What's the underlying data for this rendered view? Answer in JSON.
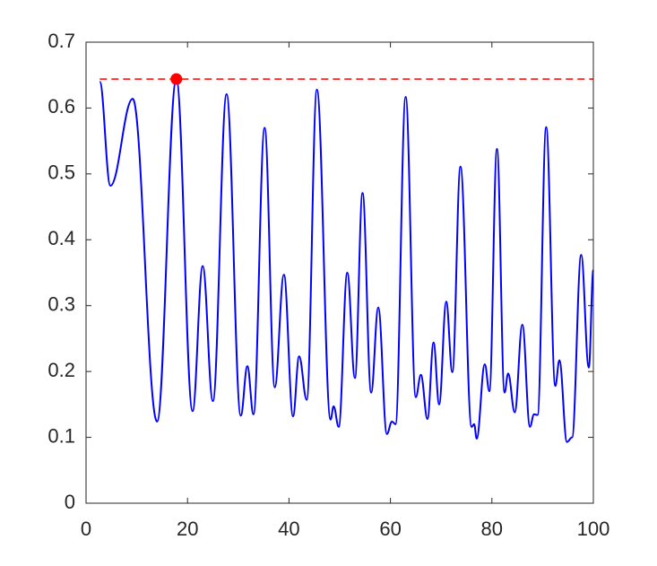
{
  "chart_data": {
    "type": "line",
    "x": [
      2.7,
      4.8,
      9.2,
      14,
      17.8,
      21,
      23,
      25,
      27.7,
      30.5,
      31.8,
      33,
      35.2,
      37.2,
      39,
      40.8,
      42,
      43.5,
      45.5,
      48.2,
      48.8,
      49.8,
      51.5,
      53,
      54.5,
      56.2,
      57.6,
      59.3,
      60.3,
      61,
      63,
      65,
      66,
      67.3,
      68.5,
      69.6,
      71,
      72.2,
      73.8,
      76,
      76.5,
      77,
      78.6,
      79.5,
      81,
      82.5,
      83.2,
      84.5,
      86,
      87.5,
      88.3,
      89,
      90.7,
      92.5,
      93.3,
      94.8,
      95.8,
      97.6,
      99.1,
      100
    ],
    "series": [
      {
        "color": "#0000ff",
        "values": [
          0.64,
          0.482,
          0.614,
          0.124,
          0.644,
          0.14,
          0.36,
          0.155,
          0.621,
          0.133,
          0.208,
          0.135,
          0.57,
          0.176,
          0.347,
          0.132,
          0.223,
          0.157,
          0.628,
          0.127,
          0.147,
          0.116,
          0.35,
          0.19,
          0.471,
          0.168,
          0.297,
          0.105,
          0.124,
          0.12,
          0.617,
          0.161,
          0.195,
          0.128,
          0.244,
          0.15,
          0.306,
          0.199,
          0.511,
          0.116,
          0.12,
          0.098,
          0.211,
          0.17,
          0.538,
          0.168,
          0.197,
          0.138,
          0.271,
          0.116,
          0.135,
          0.134,
          0.571,
          0.178,
          0.217,
          0.093,
          0.1,
          0.377,
          0.206,
          0.354
        ]
      }
    ],
    "reference_line": {
      "value": 0.644,
      "color": "#ff0000",
      "dashed": true
    },
    "marker": {
      "x": 17.8,
      "y": 0.644,
      "color": "#ff0000"
    },
    "xlim": [
      0,
      100
    ],
    "xticks": [
      0,
      20,
      40,
      60,
      80,
      100
    ],
    "ylim": [
      0,
      0.7
    ],
    "yticks": [
      0,
      0.1,
      0.2,
      0.3,
      0.4,
      0.5,
      0.6,
      0.7
    ],
    "grid": false
  }
}
